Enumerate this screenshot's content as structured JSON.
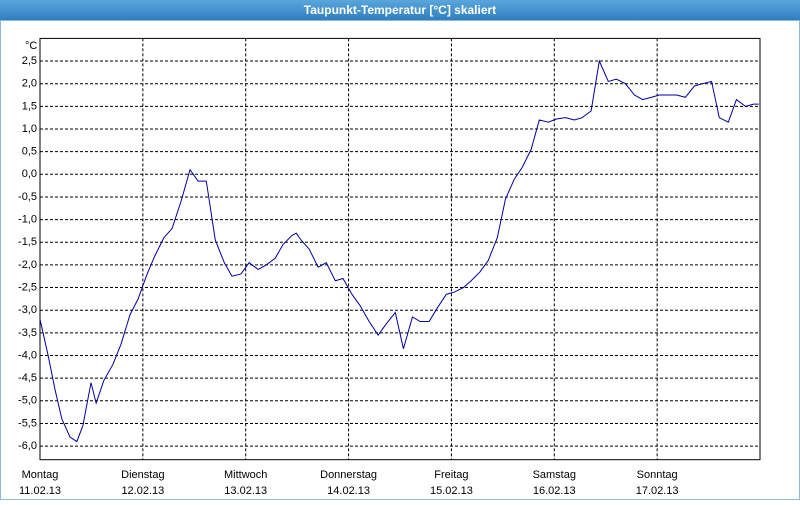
{
  "chart_data": {
    "type": "line",
    "title": "Taupunkt-Temperatur [°C] skaliert",
    "y_unit": "°C",
    "xlim": [
      0,
      168
    ],
    "xticks": [
      {
        "value": 0,
        "label": [
          "Montag",
          "11.02.13"
        ]
      },
      {
        "value": 24,
        "label": [
          "Dienstag",
          "12.02.13"
        ]
      },
      {
        "value": 48,
        "label": [
          "Mittwoch",
          "13.02.13"
        ]
      },
      {
        "value": 72,
        "label": [
          "Donnerstag",
          "14.02.13"
        ]
      },
      {
        "value": 96,
        "label": [
          "Freitag",
          "15.02.13"
        ]
      },
      {
        "value": 120,
        "label": [
          "Samstag",
          "16.02.13"
        ]
      },
      {
        "value": 144,
        "label": [
          "Sonntag",
          "17.02.13"
        ]
      }
    ],
    "ylim": [
      -6.3,
      3.0
    ],
    "yticks": [
      {
        "value": 2.5,
        "label": "2,5"
      },
      {
        "value": 2.0,
        "label": "2,0"
      },
      {
        "value": 1.5,
        "label": "1,5"
      },
      {
        "value": 1.0,
        "label": "1,0"
      },
      {
        "value": 0.5,
        "label": "0,5"
      },
      {
        "value": 0.0,
        "label": "0,0"
      },
      {
        "value": -0.5,
        "label": "-0,5"
      },
      {
        "value": -1.0,
        "label": "-1,0"
      },
      {
        "value": -1.5,
        "label": "-1,5"
      },
      {
        "value": -2.0,
        "label": "-2,0"
      },
      {
        "value": -2.5,
        "label": "-2,5"
      },
      {
        "value": -3.0,
        "label": "-3,0"
      },
      {
        "value": -3.5,
        "label": "-3,5"
      },
      {
        "value": -4.0,
        "label": "-4,0"
      },
      {
        "value": -4.5,
        "label": "-4,5"
      },
      {
        "value": -5.0,
        "label": "-5,0"
      },
      {
        "value": -5.5,
        "label": "-5,5"
      },
      {
        "value": -6.0,
        "label": "-6,0"
      }
    ],
    "grid": true,
    "x": [
      0,
      1.9,
      3.5,
      5.1,
      7,
      8.6,
      10,
      11.9,
      13.1,
      14.9,
      17,
      18.9,
      21,
      22.9,
      25,
      26.8,
      28.9,
      30.8,
      32.9,
      35,
      36.9,
      38.8,
      40.9,
      43,
      44.8,
      46.9,
      48.8,
      50.9,
      52.8,
      54.9,
      56.7,
      58.8,
      59.8,
      60.9,
      62.8,
      64.9,
      66.8,
      68.9,
      70.7,
      72.8,
      74.7,
      76.8,
      78.9,
      80.8,
      82.9,
      84.8,
      86.9,
      88.7,
      90.8,
      92.7,
      94.8,
      96.7,
      98.8,
      100.6,
      102.7,
      104.6,
      106.7,
      108.6,
      110.7,
      112.5,
      114.6,
      116.5,
      118.6,
      120.5,
      122.6,
      124.7,
      126.5,
      128.6,
      130.5,
      132.6,
      134.5,
      136.6,
      138.7,
      140.6,
      142.7,
      144.5,
      146.6,
      148.5,
      150.6,
      152.7,
      154.6,
      156.7,
      158.5,
      160.6,
      162.5,
      164.6,
      166.5,
      167.7
    ],
    "series": [
      {
        "color": "#0000a0",
        "values": [
          -3.2,
          -4.0,
          -4.75,
          -5.4,
          -5.8,
          -5.9,
          -5.55,
          -4.6,
          -5.05,
          -4.55,
          -4.2,
          -3.75,
          -3.1,
          -2.75,
          -2.2,
          -1.8,
          -1.4,
          -1.2,
          -0.6,
          0.1,
          -0.15,
          -0.15,
          -1.45,
          -1.95,
          -2.25,
          -2.2,
          -1.95,
          -2.1,
          -2.0,
          -1.85,
          -1.55,
          -1.35,
          -1.3,
          -1.45,
          -1.65,
          -2.05,
          -1.95,
          -2.35,
          -2.3,
          -2.65,
          -2.9,
          -3.25,
          -3.55,
          -3.3,
          -3.05,
          -3.85,
          -3.15,
          -3.25,
          -3.25,
          -2.95,
          -2.65,
          -2.6,
          -2.5,
          -2.35,
          -2.15,
          -1.9,
          -1.4,
          -0.55,
          -0.1,
          0.15,
          0.55,
          1.2,
          1.15,
          1.22,
          1.25,
          1.2,
          1.25,
          1.4,
          2.5,
          2.05,
          2.1,
          2.0,
          1.75,
          1.65,
          1.7,
          1.75,
          1.75,
          1.75,
          1.7,
          1.95,
          2.0,
          2.05,
          1.25,
          1.15,
          1.65,
          1.5,
          1.55,
          1.55
        ]
      }
    ]
  }
}
